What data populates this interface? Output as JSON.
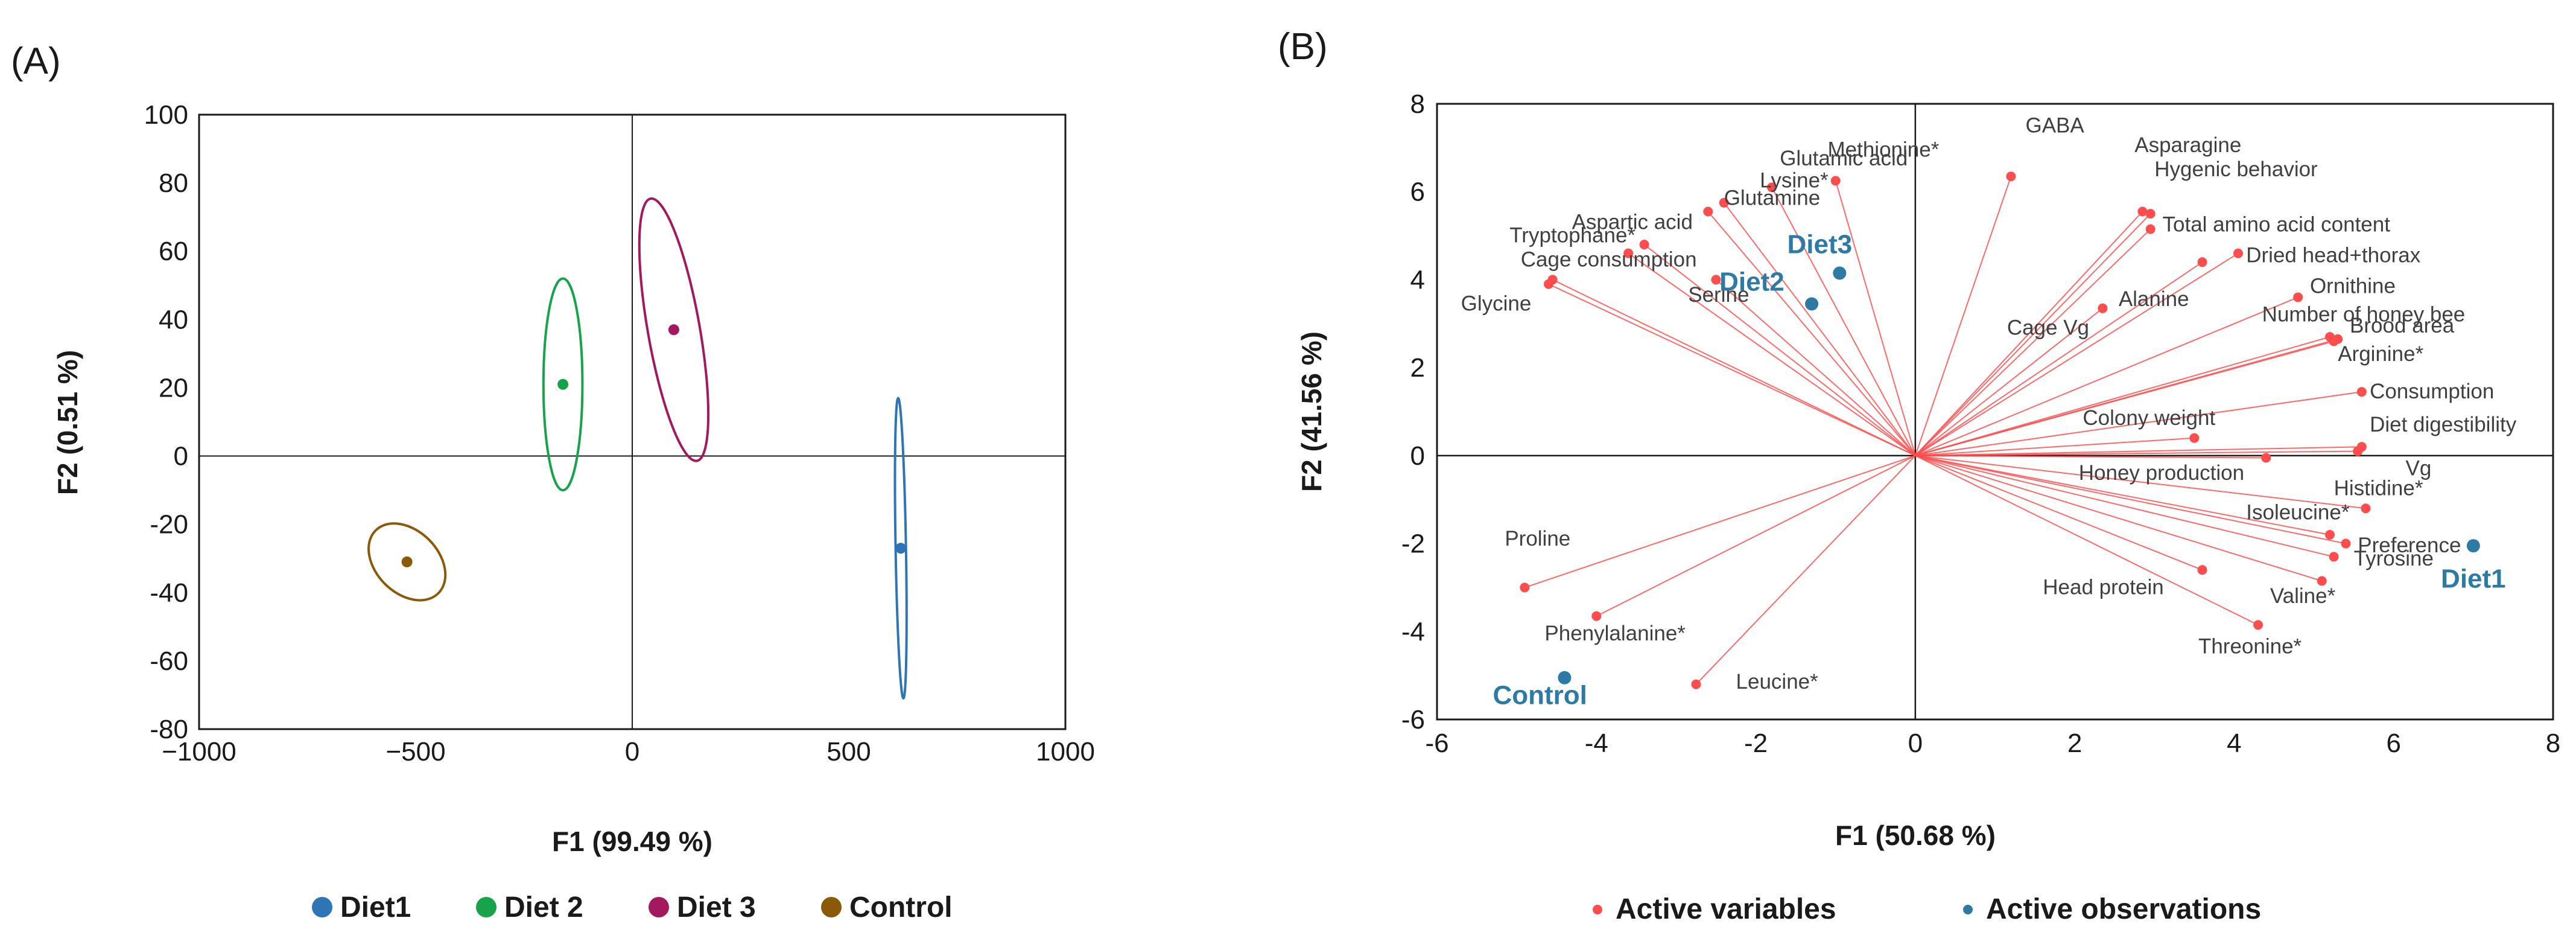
{
  "colors": {
    "diet1": "#2e75b6",
    "diet2": "#17a34a",
    "diet3": "#a3185e",
    "control": "#8a5a0a",
    "active_variable": "#ff4d4d",
    "active_observation": "#2e7aa6",
    "axis": "#1a1a1a"
  },
  "chart_data": [
    {
      "type": "scatter",
      "panel_label": "(A)",
      "xlabel": "F1 (99.49 %)",
      "ylabel": "F2 (0.51 %)",
      "xlim": [
        -1000,
        1000
      ],
      "ylim": [
        -80,
        100
      ],
      "xticks": [
        -1000,
        -500,
        0,
        500,
        1000
      ],
      "xtick_labels": [
        "−1000",
        "−500",
        "0",
        "500",
        "1000"
      ],
      "yticks": [
        100,
        80,
        60,
        40,
        20,
        0,
        -20,
        -40,
        -60,
        -80
      ],
      "ytick_labels": [
        "100",
        "80",
        "60",
        "40",
        "20",
        "0",
        "-20",
        "-40",
        "-60",
        "-80"
      ],
      "grid": false,
      "legend_position": "bottom",
      "series": [
        {
          "name": "Diet1",
          "color_key": "diet1",
          "center": [
            620,
            -27
          ],
          "ellipse": {
            "rx": 12,
            "ry": 44,
            "angle_deg": -1
          }
        },
        {
          "name": "Diet 2",
          "color_key": "diet2",
          "center": [
            -160,
            21
          ],
          "ellipse": {
            "rx": 45,
            "ry": 31,
            "angle_deg": 0
          }
        },
        {
          "name": "Diet 3",
          "color_key": "diet3",
          "center": [
            96,
            37
          ],
          "ellipse": {
            "rx": 60,
            "ry": 39,
            "angle_deg": -10
          }
        },
        {
          "name": "Control",
          "color_key": "control",
          "center": [
            -520,
            -31
          ],
          "ellipse": {
            "rx": 72,
            "ry": 13,
            "angle_deg": -45
          }
        }
      ]
    },
    {
      "type": "scatter",
      "subtype": "biplot",
      "panel_label": "(B)",
      "xlabel": "F1 (50.68 %)",
      "ylabel": "F2 (41.56 %)",
      "xlim": [
        -6,
        8
      ],
      "ylim": [
        -6,
        8
      ],
      "xticks": [
        -6,
        -4,
        -2,
        0,
        2,
        4,
        6,
        8
      ],
      "xtick_labels": [
        "-6",
        "-4",
        "-2",
        "0",
        "2",
        "4",
        "6",
        "8"
      ],
      "yticks": [
        8,
        6,
        4,
        2,
        0,
        -2,
        -4,
        -6
      ],
      "ytick_labels": [
        "8",
        "6",
        "4",
        "2",
        "0",
        "-2",
        "-4",
        "-6"
      ],
      "grid": false,
      "legend_position": "bottom",
      "legend": [
        "Active variables",
        "Active observations"
      ],
      "active_variables": [
        {
          "name": "Lysine*",
          "x": -2.4,
          "y": 5.75
        },
        {
          "name": "Glutamine",
          "x": -2.6,
          "y": 5.55
        },
        {
          "name": "Glutamic acid",
          "x": -1.8,
          "y": 6.1
        },
        {
          "name": "Aspartic acid",
          "x": -3.4,
          "y": 4.8
        },
        {
          "name": "Tryptophane*",
          "x": -3.6,
          "y": 4.6
        },
        {
          "name": "Methionine*",
          "x": -1.0,
          "y": 6.25
        },
        {
          "name": "Cage consumption",
          "x": -4.6,
          "y": 3.9
        },
        {
          "name": "GABA",
          "x": 1.2,
          "y": 6.35
        },
        {
          "name": "Asparagine",
          "x": 2.85,
          "y": 5.55
        },
        {
          "name": "Hygenic behavior",
          "x": 2.95,
          "y": 5.5
        },
        {
          "name": "Total amino acid content",
          "x": 2.95,
          "y": 5.15
        },
        {
          "name": "Dried head+thorax",
          "x": 4.05,
          "y": 4.6
        },
        {
          "name": "Alanine",
          "x": 3.6,
          "y": 4.4
        },
        {
          "name": "Ornithine",
          "x": 4.8,
          "y": 3.6
        },
        {
          "name": "Number of honey bee",
          "x": 5.2,
          "y": 2.7
        },
        {
          "name": "Brood area",
          "x": 5.3,
          "y": 2.65
        },
        {
          "name": "Arginine*",
          "x": 5.25,
          "y": 2.6
        },
        {
          "name": "Cage Vg",
          "x": 2.35,
          "y": 3.35
        },
        {
          "name": "Consumption",
          "x": 5.6,
          "y": 1.45
        },
        {
          "name": "Colony weight",
          "x": 3.5,
          "y": 0.4
        },
        {
          "name": "Diet digestibility",
          "x": 5.6,
          "y": 0.2
        },
        {
          "name": "Vg",
          "x": 5.55,
          "y": 0.1
        },
        {
          "name": "Honey production",
          "x": 4.4,
          "y": -0.05
        },
        {
          "name": "Histidine*",
          "x": 5.65,
          "y": -1.2
        },
        {
          "name": "Isoleucine*",
          "x": 5.2,
          "y": -1.8
        },
        {
          "name": "Preference",
          "x": 5.4,
          "y": -2.0
        },
        {
          "name": "Tyrosine",
          "x": 5.25,
          "y": -2.3
        },
        {
          "name": "Valine*",
          "x": 5.1,
          "y": -2.85
        },
        {
          "name": "Head protein",
          "x": 3.6,
          "y": -2.6
        },
        {
          "name": "Threonine*",
          "x": 4.3,
          "y": -3.85
        },
        {
          "name": "Serine",
          "x": -2.5,
          "y": 4.0
        },
        {
          "name": "Glycine",
          "x": -4.55,
          "y": 4.0
        },
        {
          "name": "Proline",
          "x": -4.9,
          "y": -3.0
        },
        {
          "name": "Phenylalanine*",
          "x": -4.0,
          "y": -3.65
        },
        {
          "name": "Leucine*",
          "x": -2.75,
          "y": -5.2
        }
      ],
      "active_observations": [
        {
          "name": "Diet3",
          "x": -0.95,
          "y": 4.15
        },
        {
          "name": "Diet2",
          "x": -1.3,
          "y": 3.45
        },
        {
          "name": "Diet1",
          "x": 7.0,
          "y": -2.05
        },
        {
          "name": "Control",
          "x": -4.4,
          "y": -5.05
        }
      ]
    }
  ]
}
